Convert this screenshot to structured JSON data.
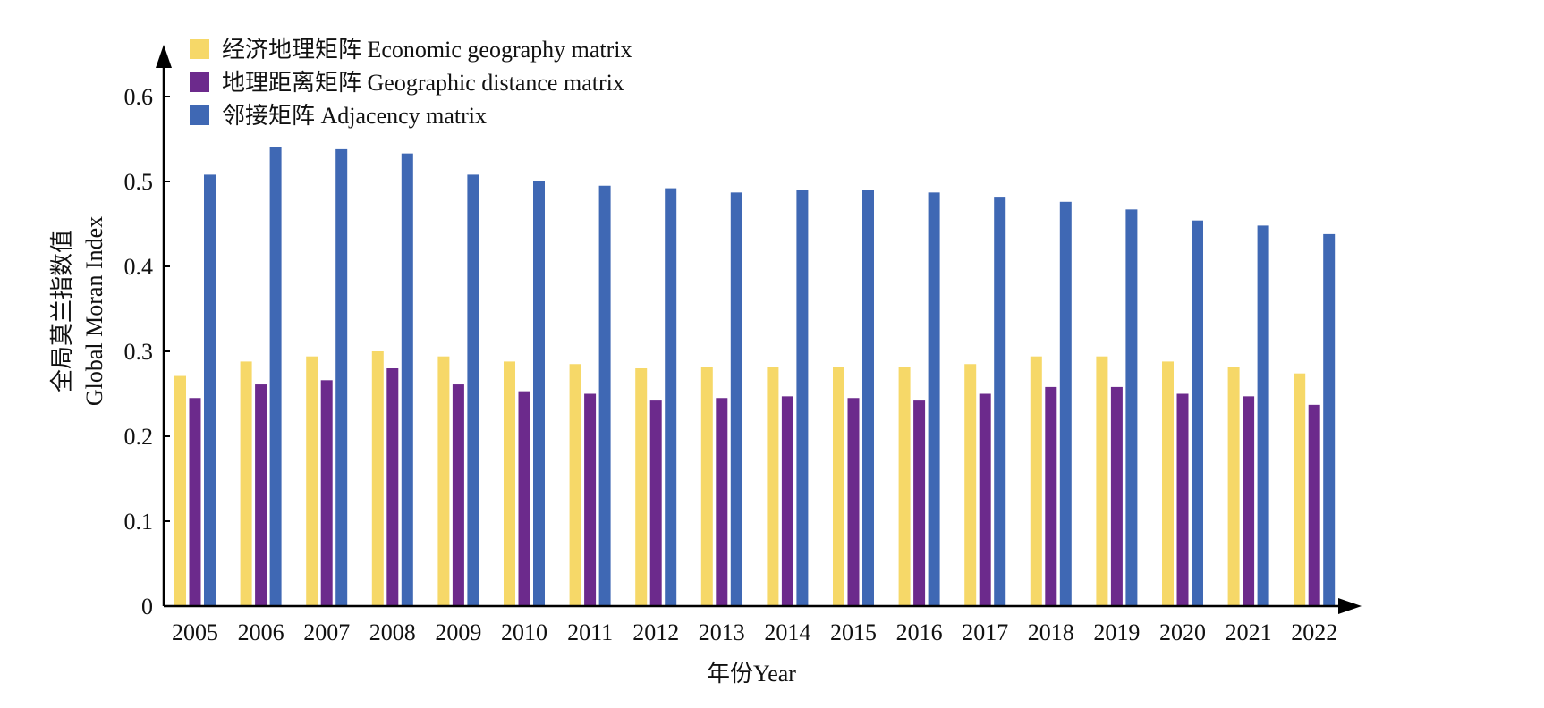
{
  "chart_data": {
    "type": "bar",
    "title": "",
    "xlabel": "年份Year",
    "ylabel_cn": "全局莫兰指数值",
    "ylabel_en": "Global Moran Index",
    "ylim": [
      0,
      0.6
    ],
    "yticks": [
      "0",
      "0.1",
      "0.2",
      "0.3",
      "0.4",
      "0.5",
      "0.6"
    ],
    "ytick_values": [
      0,
      0.1,
      0.2,
      0.3,
      0.4,
      0.5,
      0.6
    ],
    "categories": [
      "2005",
      "2006",
      "2007",
      "2008",
      "2009",
      "2010",
      "2011",
      "2012",
      "2013",
      "2014",
      "2015",
      "2016",
      "2017",
      "2018",
      "2019",
      "2020",
      "2021",
      "2022"
    ],
    "series": [
      {
        "name": "经济地理矩阵 Economic geography matrix",
        "color": "#F6D868",
        "values": [
          0.271,
          0.288,
          0.294,
          0.3,
          0.294,
          0.288,
          0.285,
          0.28,
          0.282,
          0.282,
          0.282,
          0.282,
          0.285,
          0.294,
          0.294,
          0.288,
          0.282,
          0.274
        ]
      },
      {
        "name": "地理距离矩阵 Geographic distance matrix",
        "color": "#6C2A8C",
        "values": [
          0.245,
          0.261,
          0.266,
          0.28,
          0.261,
          0.253,
          0.25,
          0.242,
          0.245,
          0.247,
          0.245,
          0.242,
          0.25,
          0.258,
          0.258,
          0.25,
          0.247,
          0.237
        ]
      },
      {
        "name": "邻接矩阵 Adjacency matrix",
        "color": "#3F68B4",
        "values": [
          0.508,
          0.54,
          0.538,
          0.533,
          0.508,
          0.5,
          0.495,
          0.492,
          0.487,
          0.49,
          0.49,
          0.487,
          0.482,
          0.476,
          0.467,
          0.454,
          0.448,
          0.438
        ]
      }
    ],
    "legend_position": "top-left",
    "grid": false
  }
}
